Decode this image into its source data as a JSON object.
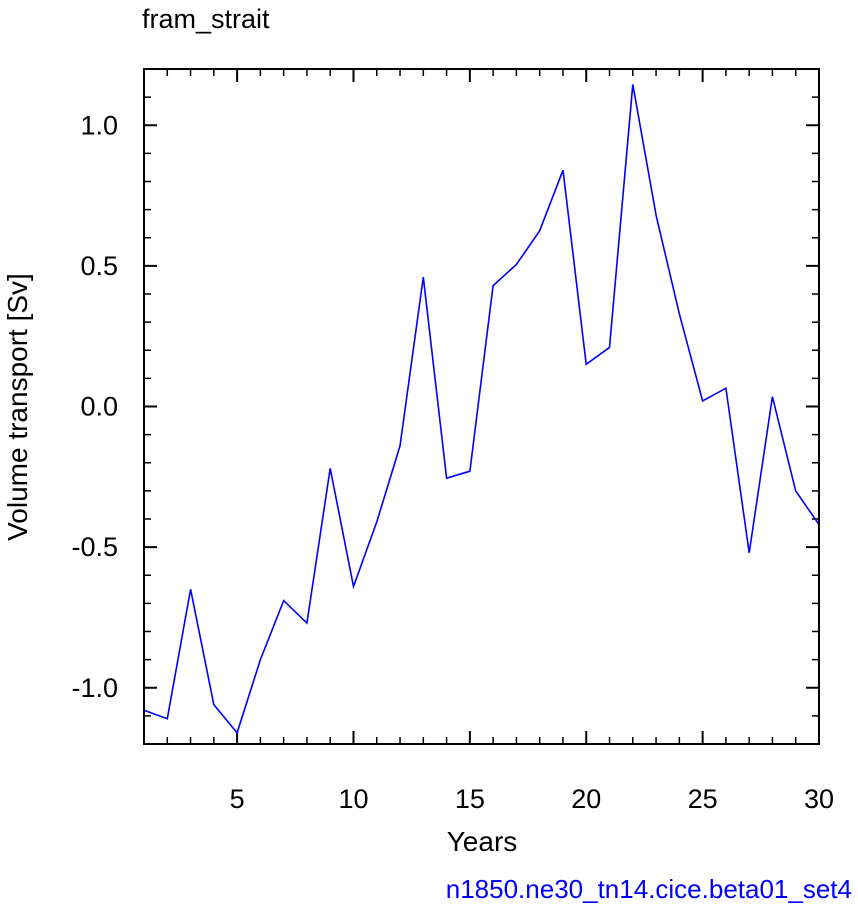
{
  "chart_data": {
    "type": "line",
    "title": "fram_strait",
    "xlabel": "Years",
    "ylabel": "Volume transport [Sv]",
    "xlim": [
      1,
      30
    ],
    "ylim": [
      -1.2,
      1.2
    ],
    "xticks": [
      5,
      10,
      15,
      20,
      25,
      30
    ],
    "xtick_labels": [
      "5",
      "10",
      "15",
      "20",
      "25",
      "30"
    ],
    "yticks": [
      -1.0,
      -0.5,
      0.0,
      0.5,
      1.0
    ],
    "ytick_labels": [
      "-1.0",
      "-0.5",
      "0.0",
      "0.5",
      "1.0"
    ],
    "grid": false,
    "series": [
      {
        "color": "#0000ff",
        "x": [
          1,
          2,
          3,
          4,
          5,
          6,
          7,
          8,
          9,
          10,
          11,
          12,
          13,
          14,
          15,
          16,
          17,
          18,
          19,
          20,
          21,
          22,
          23,
          24,
          25,
          26,
          27,
          28,
          29,
          30
        ],
        "y": [
          -1.08,
          -1.11,
          -0.65,
          -1.06,
          -1.16,
          -0.9,
          -0.69,
          -0.77,
          -0.22,
          -0.64,
          -0.41,
          -0.14,
          0.46,
          -0.255,
          -0.23,
          0.43,
          0.505,
          0.625,
          0.84,
          0.15,
          0.21,
          1.145,
          0.68,
          0.33,
          0.02,
          0.065,
          -0.52,
          0.035,
          -0.3,
          -0.42
        ]
      }
    ]
  },
  "caption": "n1850.ne30_tn14.cice.beta01_set4",
  "caption_color": "#0000ff"
}
